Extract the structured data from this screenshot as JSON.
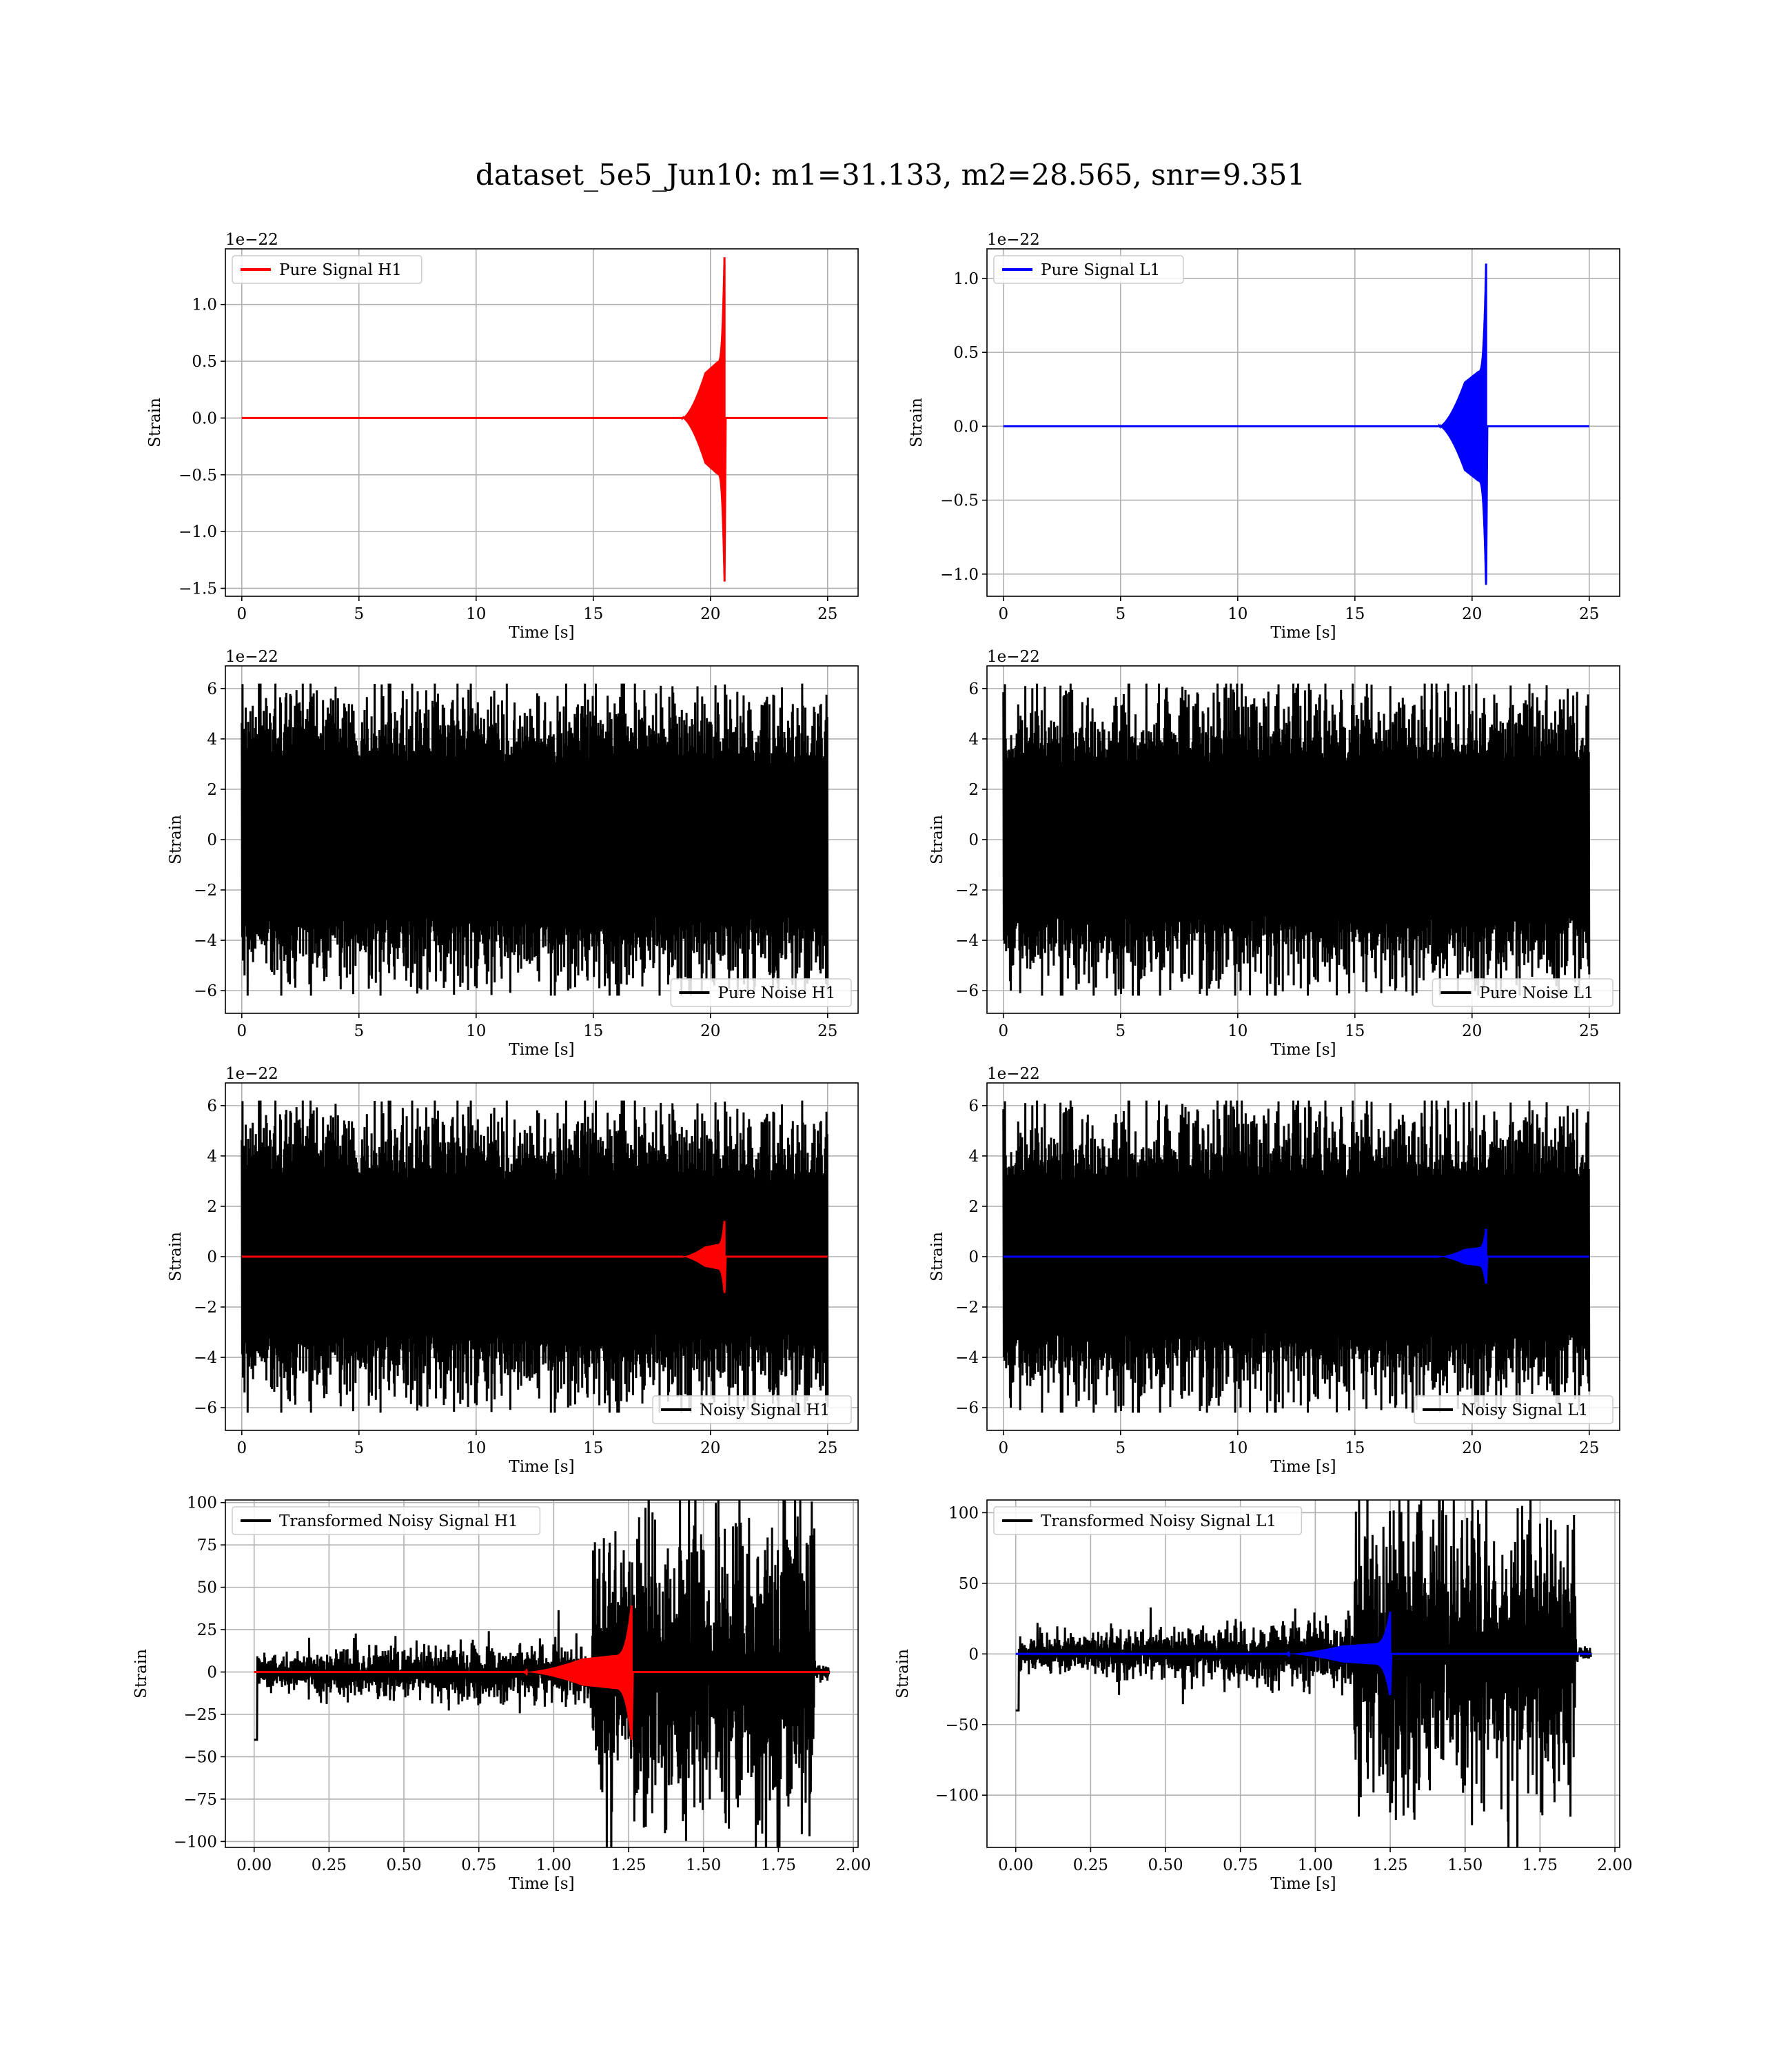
{
  "figure": {
    "title": "dataset_5e5_Jun10: m1=31.133, m2=28.565, snr=9.351"
  },
  "chart_data": [
    {
      "id": "pure-signal-h1",
      "type": "line",
      "xlabel": "Time [s]",
      "ylabel": "Strain",
      "offset_text": "1e−22",
      "xlim": [
        -0.7,
        26.3
      ],
      "ylim": [
        -1.57,
        1.49
      ],
      "xticks": [
        0,
        5,
        10,
        15,
        20,
        25
      ],
      "xtick_labels": [
        "0",
        "5",
        "10",
        "15",
        "20",
        "25"
      ],
      "yticks": [
        -1.5,
        -1.0,
        -0.5,
        0.0,
        0.5,
        1.0
      ],
      "ytick_labels": [
        "−1.5",
        "−1.0",
        "−0.5",
        "0.0",
        "0.5",
        "1.0"
      ],
      "legend_position": "upper left",
      "series": [
        {
          "name": "Pure Signal H1",
          "color": "#ff0000",
          "kind": "chirp",
          "t_start": 0,
          "t_end": 25,
          "t_merge": 20.6,
          "t_rise": 18.8,
          "plateau": 0.4,
          "peak_pos": 1.36,
          "peak_neg": -1.44,
          "x_domain": "time"
        }
      ]
    },
    {
      "id": "pure-signal-l1",
      "type": "line",
      "xlabel": "Time [s]",
      "ylabel": "Strain",
      "offset_text": "1e−22",
      "xlim": [
        -0.7,
        26.3
      ],
      "ylim": [
        -1.15,
        1.2
      ],
      "xticks": [
        0,
        5,
        10,
        15,
        20,
        25
      ],
      "xtick_labels": [
        "0",
        "5",
        "10",
        "15",
        "20",
        "25"
      ],
      "yticks": [
        -1.0,
        -0.5,
        0.0,
        0.5,
        1.0
      ],
      "ytick_labels": [
        "−1.0",
        "−0.5",
        "0.0",
        "0.5",
        "1.0"
      ],
      "legend_position": "upper left",
      "series": [
        {
          "name": "Pure Signal L1",
          "color": "#0000ff",
          "kind": "chirp",
          "t_start": 0,
          "t_end": 25,
          "t_merge": 20.6,
          "t_rise": 18.6,
          "plateau": 0.3,
          "peak_pos": 1.1,
          "peak_neg": -1.05,
          "x_domain": "time"
        }
      ]
    },
    {
      "id": "pure-noise-h1",
      "type": "line",
      "xlabel": "Time [s]",
      "ylabel": "Strain",
      "offset_text": "1e−22",
      "xlim": [
        -0.7,
        26.3
      ],
      "ylim": [
        -6.9,
        6.9
      ],
      "xticks": [
        0,
        5,
        10,
        15,
        20,
        25
      ],
      "xtick_labels": [
        "0",
        "5",
        "10",
        "15",
        "20",
        "25"
      ],
      "yticks": [
        -6,
        -4,
        -2,
        0,
        2,
        4,
        6
      ],
      "ytick_labels": [
        "−6",
        "−4",
        "−2",
        "0",
        "2",
        "4",
        "6"
      ],
      "legend_position": "lower right",
      "series": [
        {
          "name": "Pure Noise H1",
          "color": "#000000",
          "kind": "noise",
          "t_start": 0,
          "t_end": 25,
          "core": 3.0,
          "extreme": 6.2,
          "seed": 11
        }
      ]
    },
    {
      "id": "pure-noise-l1",
      "type": "line",
      "xlabel": "Time [s]",
      "ylabel": "Strain",
      "offset_text": "1e−22",
      "xlim": [
        -0.7,
        26.3
      ],
      "ylim": [
        -6.9,
        6.9
      ],
      "xticks": [
        0,
        5,
        10,
        15,
        20,
        25
      ],
      "xtick_labels": [
        "0",
        "5",
        "10",
        "15",
        "20",
        "25"
      ],
      "yticks": [
        -6,
        -4,
        -2,
        0,
        2,
        4,
        6
      ],
      "ytick_labels": [
        "−6",
        "−4",
        "−2",
        "0",
        "2",
        "4",
        "6"
      ],
      "legend_position": "lower right",
      "series": [
        {
          "name": "Pure Noise L1",
          "color": "#000000",
          "kind": "noise",
          "t_start": 0,
          "t_end": 25,
          "core": 3.0,
          "extreme": 6.2,
          "seed": 23
        }
      ]
    },
    {
      "id": "noisy-signal-h1",
      "type": "line",
      "xlabel": "Time [s]",
      "ylabel": "Strain",
      "offset_text": "1e−22",
      "xlim": [
        -0.7,
        26.3
      ],
      "ylim": [
        -6.9,
        6.9
      ],
      "xticks": [
        0,
        5,
        10,
        15,
        20,
        25
      ],
      "xtick_labels": [
        "0",
        "5",
        "10",
        "15",
        "20",
        "25"
      ],
      "yticks": [
        -6,
        -4,
        -2,
        0,
        2,
        4,
        6
      ],
      "ytick_labels": [
        "−6",
        "−4",
        "−2",
        "0",
        "2",
        "4",
        "6"
      ],
      "legend_position": "lower right",
      "series": [
        {
          "name": "Noisy Signal H1",
          "color": "#000000",
          "kind": "noise",
          "t_start": 0,
          "t_end": 25,
          "core": 3.0,
          "extreme": 6.2,
          "seed": 11
        },
        {
          "color": "#ff0000",
          "kind": "chirp",
          "t_start": 0,
          "t_end": 25,
          "t_merge": 20.6,
          "t_rise": 18.8,
          "plateau": 0.4,
          "peak_pos": 1.36,
          "peak_neg": -1.44,
          "x_domain": "time"
        }
      ]
    },
    {
      "id": "noisy-signal-l1",
      "type": "line",
      "xlabel": "Time [s]",
      "ylabel": "Strain",
      "offset_text": "1e−22",
      "xlim": [
        -0.7,
        26.3
      ],
      "ylim": [
        -6.9,
        6.9
      ],
      "xticks": [
        0,
        5,
        10,
        15,
        20,
        25
      ],
      "xtick_labels": [
        "0",
        "5",
        "10",
        "15",
        "20",
        "25"
      ],
      "yticks": [
        -6,
        -4,
        -2,
        0,
        2,
        4,
        6
      ],
      "ytick_labels": [
        "−6",
        "−4",
        "−2",
        "0",
        "2",
        "4",
        "6"
      ],
      "legend_position": "lower right",
      "series": [
        {
          "name": "Noisy Signal L1",
          "color": "#000000",
          "kind": "noise",
          "t_start": 0,
          "t_end": 25,
          "core": 3.0,
          "extreme": 6.2,
          "seed": 23
        },
        {
          "color": "#0000ff",
          "kind": "chirp",
          "t_start": 0,
          "t_end": 25,
          "t_merge": 20.6,
          "t_rise": 18.6,
          "plateau": 0.3,
          "peak_pos": 1.1,
          "peak_neg": -1.05,
          "x_domain": "time"
        }
      ]
    },
    {
      "id": "transformed-noisy-signal-h1",
      "type": "line",
      "xlabel": "Time [s]",
      "ylabel": "Strain",
      "offset_text": "",
      "xlim": [
        -0.096,
        2.016
      ],
      "ylim": [
        -103.5,
        101.5
      ],
      "xticks": [
        0,
        0.25,
        0.5,
        0.75,
        1.0,
        1.25,
        1.5,
        1.75,
        2.0
      ],
      "xtick_labels": [
        "0.00",
        "0.25",
        "0.50",
        "0.75",
        "1.00",
        "1.25",
        "1.50",
        "1.75",
        "2.00"
      ],
      "yticks": [
        -100,
        -75,
        -50,
        -25,
        0,
        25,
        50,
        75,
        100
      ],
      "ytick_labels": [
        "−100",
        "−75",
        "−50",
        "−25",
        "0",
        "25",
        "50",
        "75",
        "100"
      ],
      "legend_position": "upper left",
      "series": [
        {
          "name": "Transformed Noisy Signal H1",
          "color": "#000000",
          "kind": "whitened",
          "t_start": 0,
          "t_end": 1.92,
          "t_jump": 1.13,
          "t_drop": 1.87,
          "low": 8,
          "high": 60,
          "extreme": 93,
          "seed": 5
        },
        {
          "color": "#ff0000",
          "kind": "chirp",
          "t_start": 0,
          "t_end": 1.92,
          "t_merge": 1.26,
          "t_rise": 0.9,
          "plateau": 8,
          "peak_pos": 37,
          "peak_neg": -40,
          "x_domain": "whitened"
        }
      ]
    },
    {
      "id": "transformed-noisy-signal-l1",
      "type": "line",
      "xlabel": "Time [s]",
      "ylabel": "Strain",
      "offset_text": "",
      "xlim": [
        -0.096,
        2.016
      ],
      "ylim": [
        -137,
        109
      ],
      "xticks": [
        0,
        0.25,
        0.5,
        0.75,
        1.0,
        1.25,
        1.5,
        1.75,
        2.0
      ],
      "xtick_labels": [
        "0.00",
        "0.25",
        "0.50",
        "0.75",
        "1.00",
        "1.25",
        "1.50",
        "1.75",
        "2.00"
      ],
      "yticks": [
        -100,
        -50,
        0,
        50,
        100
      ],
      "ytick_labels": [
        "−100",
        "−50",
        "0",
        "50",
        "100"
      ],
      "legend_position": "upper left",
      "series": [
        {
          "name": "Transformed Noisy Signal L1",
          "color": "#000000",
          "kind": "whitened",
          "t_start": 0,
          "t_end": 1.92,
          "t_jump": 1.13,
          "t_drop": 1.87,
          "low": 10,
          "high": 70,
          "extreme": 120,
          "seed": 9
        },
        {
          "color": "#0000ff",
          "kind": "chirp",
          "t_start": 0,
          "t_end": 1.92,
          "t_merge": 1.25,
          "t_rise": 0.9,
          "plateau": 6,
          "peak_pos": 30,
          "peak_neg": -28,
          "x_domain": "whitened"
        }
      ]
    }
  ]
}
